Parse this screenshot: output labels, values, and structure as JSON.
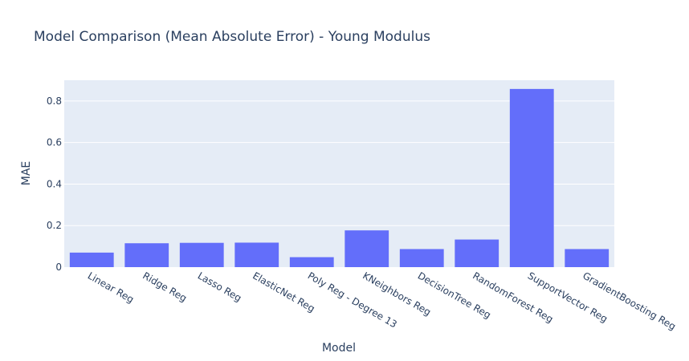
{
  "chart_data": {
    "type": "bar",
    "title": "Model Comparison (Mean Absolute Error) - Young Modulus",
    "xlabel": "Model",
    "ylabel": "MAE",
    "categories": [
      "Linear Reg",
      "Ridge Reg",
      "Lasso Reg",
      "ElasticNet Reg",
      "Poly Reg - Degree 13",
      "KNeighbors Reg",
      "DecisionTree Reg",
      "RandomForest Reg",
      "SupportVector Reg",
      "GradientBoosting Reg"
    ],
    "values": [
      0.07,
      0.115,
      0.117,
      0.118,
      0.048,
      0.177,
      0.087,
      0.133,
      0.858,
      0.087
    ],
    "ylim": [
      0,
      0.9
    ],
    "yticks": [
      0,
      0.2,
      0.4,
      0.6,
      0.8
    ],
    "ytick_labels": [
      "0",
      "0.2",
      "0.4",
      "0.6",
      "0.8"
    ],
    "grid": true,
    "colors": {
      "bar": "#636efa",
      "plot_bg": "#e5ecf6",
      "grid": "#ffffff",
      "text": "#2a3f5f"
    }
  }
}
